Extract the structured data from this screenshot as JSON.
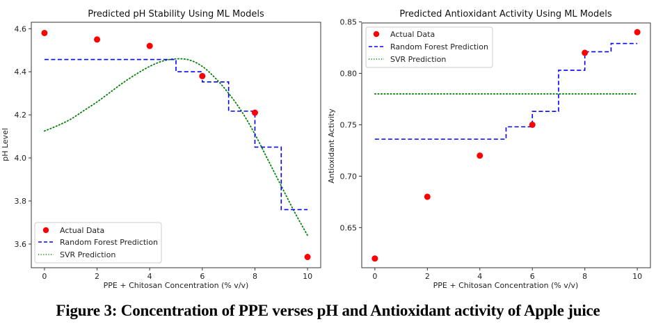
{
  "figure_caption": "Figure 3: Concentration of PPE verses pH and Antioxidant activity of Apple juice",
  "colors": {
    "actual": "#ff0000",
    "random_forest": "#0000ff",
    "svr": "#008000",
    "axes": "#333333"
  },
  "chart_data": [
    {
      "type": "line",
      "title": "Predicted pH Stability Using ML Models",
      "xlabel": "PPE + Chitosan Concentration (% v/v)",
      "ylabel": "pH Level",
      "xlim": [
        -0.5,
        10.5
      ],
      "ylim": [
        3.49,
        4.63
      ],
      "xticks": [
        0,
        2,
        4,
        6,
        8,
        10
      ],
      "xtick_labels": [
        "0",
        "2",
        "4",
        "6",
        "8",
        "10"
      ],
      "yticks": [
        3.6,
        3.8,
        4.0,
        4.2,
        4.4,
        4.6
      ],
      "ytick_labels": [
        "3.6",
        "3.8",
        "4.0",
        "4.2",
        "4.4",
        "4.6"
      ],
      "grid": false,
      "legend_position": "lower-left",
      "legend": [
        "Actual Data",
        "Random Forest Prediction",
        "SVR Prediction"
      ],
      "series": [
        {
          "name": "Actual Data",
          "style": "scatter",
          "x": [
            0,
            2,
            4,
            6,
            8,
            10
          ],
          "y": [
            4.58,
            4.55,
            4.52,
            4.38,
            4.21,
            3.54
          ]
        },
        {
          "name": "Random Forest Prediction",
          "style": "step-dashed",
          "x": [
            0,
            5,
            5,
            6,
            6,
            7,
            7,
            8,
            8,
            9,
            9,
            10
          ],
          "y": [
            4.457,
            4.457,
            4.4,
            4.4,
            4.353,
            4.353,
            4.217,
            4.217,
            4.05,
            4.05,
            3.76,
            3.76
          ]
        },
        {
          "name": "SVR Prediction",
          "style": "dotted",
          "x": [
            0,
            0.5,
            1,
            1.5,
            2,
            2.5,
            3,
            3.5,
            4,
            4.5,
            5,
            5.5,
            6,
            6.5,
            7,
            7.5,
            8,
            8.5,
            9,
            9.5,
            10
          ],
          "y": [
            4.125,
            4.15,
            4.18,
            4.22,
            4.26,
            4.305,
            4.35,
            4.39,
            4.425,
            4.45,
            4.46,
            4.455,
            4.425,
            4.37,
            4.3,
            4.215,
            4.11,
            3.99,
            3.87,
            3.75,
            3.64
          ]
        }
      ]
    },
    {
      "type": "line",
      "title": "Predicted Antioxidant Activity Using ML Models",
      "xlabel": "PPE + Chitosan Concentration (% v/v)",
      "ylabel": "Antioxidant Activity",
      "xlim": [
        -0.5,
        10.5
      ],
      "ylim": [
        0.611,
        0.849
      ],
      "xticks": [
        0,
        2,
        4,
        6,
        8,
        10
      ],
      "xtick_labels": [
        "0",
        "2",
        "4",
        "6",
        "8",
        "10"
      ],
      "yticks": [
        0.65,
        0.7,
        0.75,
        0.8,
        0.85
      ],
      "ytick_labels": [
        "0.65",
        "0.70",
        "0.75",
        "0.80",
        "0.85"
      ],
      "grid": false,
      "legend_position": "upper-left",
      "legend": [
        "Actual Data",
        "Random Forest Prediction",
        "SVR Prediction"
      ],
      "series": [
        {
          "name": "Actual Data",
          "style": "scatter",
          "x": [
            0,
            2,
            4,
            6,
            8,
            10
          ],
          "y": [
            0.62,
            0.68,
            0.72,
            0.75,
            0.82,
            0.84
          ]
        },
        {
          "name": "Random Forest Prediction",
          "style": "step-dashed",
          "x": [
            0,
            5,
            5,
            6,
            6,
            7,
            7,
            8,
            8,
            9,
            9,
            10
          ],
          "y": [
            0.736,
            0.736,
            0.748,
            0.748,
            0.763,
            0.763,
            0.803,
            0.803,
            0.821,
            0.821,
            0.829,
            0.829
          ]
        },
        {
          "name": "SVR Prediction",
          "style": "dotted",
          "x": [
            0,
            10
          ],
          "y": [
            0.78,
            0.78
          ]
        }
      ]
    }
  ]
}
